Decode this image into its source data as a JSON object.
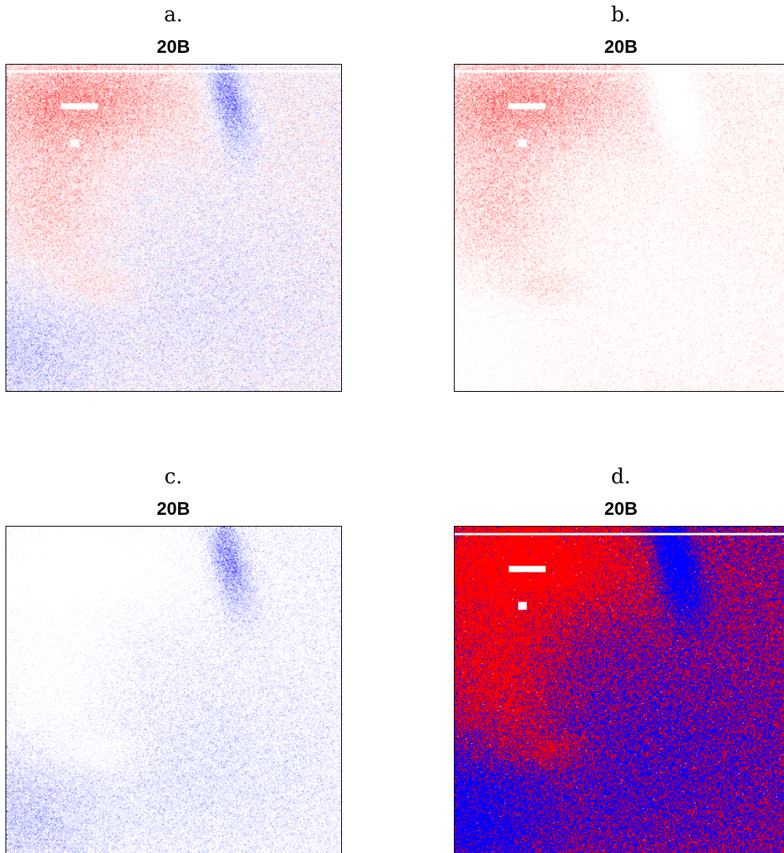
{
  "chart_data": [
    {
      "type": "heatmap",
      "panel_label": "a.",
      "title": "20B",
      "colorscale": "diverging",
      "colors": {
        "positive": "#ff0000",
        "negative": "#0000ff",
        "zero": "#ffffff"
      },
      "values_shown": "both"
    },
    {
      "type": "heatmap",
      "panel_label": "b.",
      "title": "20B",
      "colorscale": "sequential",
      "colors": {
        "positive": "#ff0000",
        "zero": "#ffffff"
      },
      "values_shown": "positive"
    },
    {
      "type": "heatmap",
      "panel_label": "c.",
      "title": "20B",
      "colorscale": "sequential",
      "colors": {
        "negative": "#0000ff",
        "zero": "#ffffff"
      },
      "values_shown": "negative"
    },
    {
      "type": "heatmap",
      "panel_label": "d.",
      "title": "20B",
      "colorscale": "sign",
      "colors": {
        "positive": "#ff0000",
        "negative": "#0000ff",
        "zero": "#ffffff"
      },
      "values_shown": "sign"
    }
  ]
}
